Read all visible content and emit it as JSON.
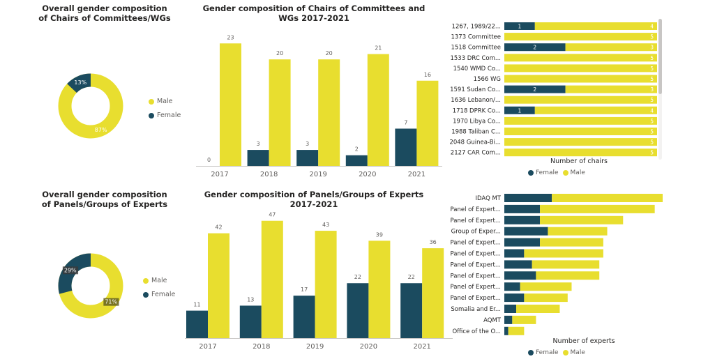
{
  "colors": {
    "male": "#E8DE2F",
    "female": "#1B4B5F"
  },
  "titles": {
    "donut1": "Overall gender composition of Chairs of Committees/WGs",
    "bar1": "Gender composition of Chairs of Committees and WGs 2017-2021",
    "donut2": "Overall gender composition of Panels/Groups of Experts",
    "bar2": "Gender composition of Panels/Groups of Experts 2017-2021"
  },
  "legend": {
    "male": "Male",
    "female": "Female"
  },
  "axis_titles": {
    "hbar1_x": "Number of chairs",
    "hbar2_x": "Number of experts"
  },
  "chart_data": [
    {
      "type": "pie",
      "title": "Overall gender composition of Chairs of Committees/WGs",
      "labels": [
        "Male",
        "Female"
      ],
      "values": [
        87,
        13
      ],
      "value_labels": [
        "87%",
        "13%"
      ]
    },
    {
      "type": "bar",
      "title": "Gender composition of Chairs of Committees and WGs 2017-2021",
      "categories": [
        "2017",
        "2018",
        "2019",
        "2020",
        "2021"
      ],
      "series": [
        {
          "name": "Female",
          "values": [
            0,
            3,
            3,
            2,
            7
          ]
        },
        {
          "name": "Male",
          "values": [
            23,
            20,
            20,
            21,
            16
          ]
        }
      ],
      "ylim": [
        0,
        25
      ]
    },
    {
      "type": "bar",
      "orientation": "horizontal-stacked",
      "xlabel": "Number of chairs",
      "categories": [
        "1267, 1989/22...",
        "1373 Committee",
        "1518 Committee",
        "1533 DRC Com...",
        "1540 WMD Co...",
        "1566 WG",
        "1591 Sudan Co...",
        "1636 Lebanon/...",
        "1718 DPRK Co...",
        "1970 Libya Co...",
        "1988 Taliban C...",
        "2048 Guinea-Bi...",
        "2127 CAR Com..."
      ],
      "series": [
        {
          "name": "Female",
          "values": [
            1,
            0,
            2,
            0,
            0,
            0,
            2,
            0,
            1,
            0,
            0,
            0,
            0
          ]
        },
        {
          "name": "Male",
          "values": [
            4,
            5,
            3,
            5,
            5,
            5,
            3,
            5,
            4,
            5,
            5,
            5,
            5
          ]
        }
      ],
      "xlim": [
        0,
        5
      ]
    },
    {
      "type": "pie",
      "title": "Overall gender composition of Panels/Groups of Experts",
      "labels": [
        "Male",
        "Female"
      ],
      "values": [
        71,
        29
      ],
      "value_labels": [
        "71%",
        "29%"
      ]
    },
    {
      "type": "bar",
      "title": "Gender composition of Panels/Groups of Experts 2017-2021",
      "categories": [
        "2017",
        "2018",
        "2019",
        "2020",
        "2021"
      ],
      "series": [
        {
          "name": "Female",
          "values": [
            11,
            13,
            17,
            22,
            22
          ]
        },
        {
          "name": "Male",
          "values": [
            42,
            47,
            43,
            39,
            36
          ]
        }
      ],
      "ylim": [
        0,
        50
      ]
    },
    {
      "type": "bar",
      "orientation": "horizontal-stacked",
      "xlabel": "Number of experts",
      "categories": [
        "IDAQ MT",
        "Panel of Expert...",
        "Panel of Expert...",
        "Group of Exper...",
        "Panel of Expert...",
        "Panel of Expert...",
        "Panel of Expert...",
        "Panel of Expert...",
        "Panel of Expert...",
        "Panel of Expert...",
        "Somalia and Er...",
        "AQMT",
        "Office of the O..."
      ],
      "series": [
        {
          "name": "Female",
          "values": [
            12,
            9,
            9,
            11,
            9,
            5,
            7,
            8,
            4,
            5,
            3,
            2,
            1
          ]
        },
        {
          "name": "Male",
          "values": [
            28,
            29,
            21,
            15,
            16,
            20,
            17,
            16,
            13,
            11,
            11,
            6,
            4
          ]
        }
      ],
      "xlim": [
        0,
        40
      ]
    }
  ]
}
